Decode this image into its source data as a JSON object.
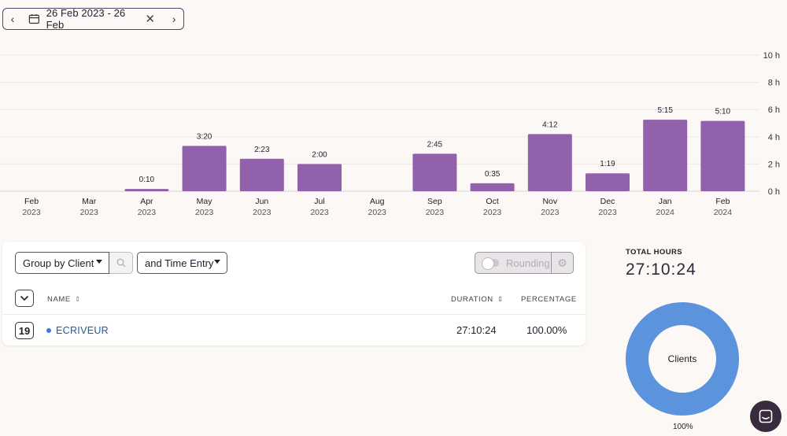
{
  "date_range": {
    "label": "26 Feb 2023 - 26 Feb"
  },
  "chart_data": {
    "type": "bar",
    "categories": [
      "Feb",
      "Mar",
      "Apr",
      "May",
      "Jun",
      "Jul",
      "Aug",
      "Sep",
      "Oct",
      "Nov",
      "Dec",
      "Jan",
      "Feb"
    ],
    "years": [
      "2023",
      "2023",
      "2023",
      "2023",
      "2023",
      "2023",
      "2023",
      "2023",
      "2023",
      "2023",
      "2023",
      "2024",
      "2024"
    ],
    "values": [
      0,
      0,
      0.1667,
      3.3333,
      2.3833,
      2.0,
      0,
      2.75,
      0.5833,
      4.2,
      1.3167,
      5.25,
      5.1667
    ],
    "data_labels": [
      "",
      "",
      "0:10",
      "3:20",
      "2:23",
      "2:00",
      "",
      "2:45",
      "0:35",
      "4:12",
      "1:19",
      "5:15",
      "5:10"
    ],
    "y_ticks": [
      "0 h",
      "2 h",
      "4 h",
      "6 h",
      "8 h",
      "10 h"
    ],
    "ylim": [
      0,
      10
    ],
    "bar_color": "#9162ab",
    "grid": true
  },
  "toolbar": {
    "group_select": "Group by Client",
    "entry_select": "and Time Entry",
    "rounding_label": "Rounding"
  },
  "table": {
    "headers": {
      "name": "NAME",
      "duration": "DURATION",
      "percentage": "PERCENTAGE"
    },
    "rows": [
      {
        "count": "19",
        "name": "ECRIVEUR",
        "duration": "27:10:24",
        "percentage": "100.00%",
        "dot_color": "#3a7bd5"
      }
    ]
  },
  "summary": {
    "total_label": "TOTAL HOURS",
    "total_value": "27:10:24",
    "donut_center": "Clients",
    "donut_percent": "100%",
    "donut_color": "#5b93dd"
  },
  "icons": {
    "prev": "chevron-left-icon",
    "next": "chevron-right-icon",
    "calendar": "calendar-icon",
    "clear": "close-icon",
    "search": "search-icon",
    "gear": "gear-icon",
    "expand": "chevron-down-icon",
    "chat": "chat-icon"
  }
}
